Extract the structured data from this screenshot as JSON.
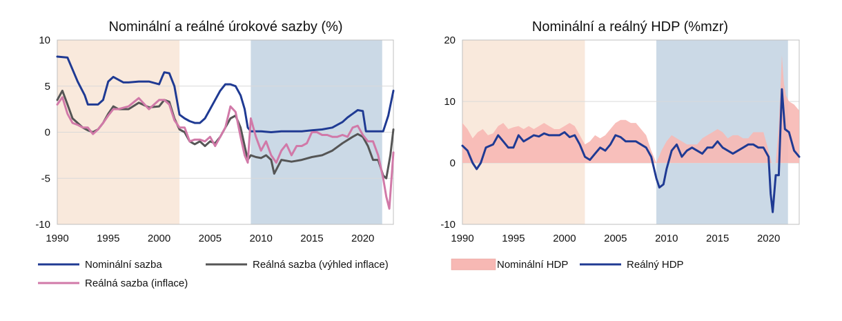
{
  "chart_data": [
    {
      "type": "line",
      "title": "Nominální a reálné úrokové sazby (%)",
      "xlim": [
        1990,
        2023
      ],
      "ylim": [
        -10,
        10
      ],
      "x_ticks": [
        1990,
        1995,
        2000,
        2005,
        2010,
        2015,
        2020
      ],
      "y_ticks": [
        -10,
        -5,
        0,
        5,
        10
      ],
      "grid": true,
      "legend": "bottom",
      "shaded_periods": [
        {
          "from": 1990,
          "to": 2002,
          "color": "#f9e9dc"
        },
        {
          "from": 2009,
          "to": 2021.9,
          "color": "#cbd9e6"
        }
      ],
      "series": [
        {
          "name": "Nominální sazba",
          "color": "#1f3a93",
          "x": [
            1990,
            1991,
            1992,
            1992.7,
            1993,
            1994,
            1994.5,
            1995,
            1995.5,
            1996,
            1996.5,
            1997,
            1998,
            1999,
            2000,
            2000.3,
            2000.5,
            2001,
            2001.5,
            2002,
            2002.5,
            2003,
            2003.5,
            2004,
            2004.5,
            2005,
            2005.5,
            2006,
            2006.5,
            2007,
            2007.5,
            2008,
            2008.4,
            2008.7,
            2009,
            2010,
            2011,
            2012,
            2013,
            2014,
            2015,
            2016,
            2017,
            2017.5,
            2018,
            2018.5,
            2019,
            2019.5,
            2020,
            2020.3,
            2021,
            2021.5,
            2022,
            2022.5,
            2023
          ],
          "y": [
            8.2,
            8.1,
            5.5,
            4.0,
            3.0,
            3.0,
            3.5,
            5.5,
            6.0,
            5.7,
            5.4,
            5.4,
            5.5,
            5.5,
            5.2,
            6.0,
            6.5,
            6.4,
            5.0,
            1.9,
            1.5,
            1.2,
            1.0,
            1.0,
            1.5,
            2.5,
            3.5,
            4.5,
            5.2,
            5.2,
            5.0,
            4.0,
            2.5,
            0.5,
            0.1,
            0.1,
            0.0,
            0.1,
            0.1,
            0.1,
            0.2,
            0.3,
            0.5,
            0.8,
            1.1,
            1.6,
            2.0,
            2.4,
            2.3,
            0.1,
            0.1,
            0.1,
            0.1,
            1.8,
            4.5
          ]
        },
        {
          "name": "Reálná sazba (výhled inflace)",
          "color": "#555555",
          "x": [
            1990,
            1990.5,
            1991,
            1991.5,
            1992,
            1992.5,
            1993,
            1993.5,
            1994,
            1994.5,
            1995,
            1995.5,
            1996,
            1997,
            1998,
            1999,
            2000,
            2000.5,
            2001,
            2001.5,
            2002,
            2002.5,
            2003,
            2003.5,
            2004,
            2004.5,
            2005,
            2005.5,
            2006,
            2006.5,
            2007,
            2007.5,
            2008,
            2008.4,
            2008.7,
            2009,
            2009.5,
            2010,
            2010.5,
            2011,
            2011.3,
            2012,
            2013,
            2014,
            2015,
            2016,
            2017,
            2018,
            2019,
            2019.5,
            2020,
            2020.5,
            2021,
            2021.5,
            2022,
            2022.3,
            2022.7,
            2023
          ],
          "y": [
            3.5,
            4.5,
            3.0,
            1.5,
            1.0,
            0.5,
            0.2,
            0.0,
            0.3,
            1.0,
            2.0,
            2.8,
            2.5,
            2.5,
            3.2,
            2.7,
            2.8,
            3.5,
            3.3,
            1.5,
            0.3,
            0.0,
            -1.0,
            -1.3,
            -1.0,
            -1.5,
            -1.0,
            -1.2,
            -0.5,
            0.5,
            1.5,
            1.8,
            0.5,
            -1.5,
            -3.0,
            -2.5,
            -2.7,
            -2.8,
            -2.5,
            -3.0,
            -4.5,
            -3.0,
            -3.2,
            -3.0,
            -2.7,
            -2.5,
            -2.0,
            -1.2,
            -0.5,
            -0.2,
            -0.5,
            -1.5,
            -3.0,
            -3.0,
            -4.7,
            -5.0,
            -2.5,
            0.3
          ]
        },
        {
          "name": "Reálná sazba (inflace)",
          "color": "#d179a8",
          "x": [
            1990,
            1990.5,
            1991,
            1991.5,
            1992,
            1992.5,
            1993,
            1993.5,
            1994,
            1994.5,
            1995,
            1995.5,
            1996,
            1997,
            1998,
            1999,
            2000,
            2000.5,
            2001,
            2001.5,
            2002,
            2002.5,
            2003,
            2003.5,
            2004,
            2004.5,
            2005,
            2005.5,
            2006,
            2006.5,
            2007,
            2007.5,
            2008,
            2008.4,
            2008.7,
            2009,
            2009.5,
            2010,
            2010.5,
            2011,
            2011.5,
            2012,
            2012.5,
            2013,
            2013.5,
            2014,
            2014.5,
            2015,
            2015.5,
            2016,
            2016.5,
            2017,
            2017.5,
            2018,
            2018.5,
            2019,
            2019.5,
            2020,
            2020.5,
            2021,
            2021.5,
            2022,
            2022.3,
            2022.6,
            2023
          ],
          "y": [
            3.0,
            3.8,
            2.0,
            1.0,
            0.8,
            0.5,
            0.5,
            -0.2,
            0.3,
            1.0,
            1.8,
            2.5,
            2.5,
            2.8,
            3.7,
            2.5,
            3.5,
            3.5,
            3.0,
            1.3,
            0.5,
            0.5,
            -1.0,
            -0.8,
            -0.8,
            -1.0,
            -0.5,
            -1.5,
            -0.5,
            0.5,
            2.8,
            2.2,
            -0.5,
            -2.5,
            -3.3,
            1.5,
            -0.5,
            -2.0,
            -1.0,
            -2.5,
            -3.3,
            -2.0,
            -1.3,
            -2.5,
            -1.5,
            -1.5,
            -1.2,
            0.0,
            0.0,
            -0.3,
            -0.3,
            -0.5,
            -0.5,
            -0.3,
            -0.5,
            0.5,
            0.7,
            -0.3,
            -1.0,
            -1.0,
            -2.5,
            -5.0,
            -7.0,
            -8.3,
            -2.2
          ]
        }
      ]
    },
    {
      "type": "area",
      "title": "Nominální a reálný HDP (%mzr)",
      "xlim": [
        1990,
        2023
      ],
      "ylim": [
        -10,
        20
      ],
      "x_ticks": [
        1990,
        1995,
        2000,
        2005,
        2010,
        2015,
        2020
      ],
      "y_ticks": [
        -10,
        0,
        10,
        20
      ],
      "grid": true,
      "legend": "bottom",
      "shaded_periods": [
        {
          "from": 1990,
          "to": 2002,
          "color": "#f9e9dc"
        },
        {
          "from": 2009,
          "to": 2021.9,
          "color": "#cbd9e6"
        }
      ],
      "series": [
        {
          "name": "Nominální HDP",
          "color": "#f7b8b4",
          "kind": "area",
          "x": [
            1990,
            1990.5,
            1991,
            1991.5,
            1992,
            1992.5,
            1993,
            1993.5,
            1994,
            1994.5,
            1995,
            1995.5,
            1996,
            1996.5,
            1997,
            1997.5,
            1998,
            1998.5,
            1999,
            1999.5,
            2000,
            2000.5,
            2001,
            2001.5,
            2002,
            2002.5,
            2003,
            2003.5,
            2004,
            2004.5,
            2005,
            2005.5,
            2006,
            2006.5,
            2007,
            2007.5,
            2008,
            2008.5,
            2009,
            2009.5,
            2010,
            2010.5,
            2011,
            2011.5,
            2012,
            2012.5,
            2013,
            2013.5,
            2014,
            2014.5,
            2015,
            2015.5,
            2016,
            2016.5,
            2017,
            2017.5,
            2018,
            2018.5,
            2019,
            2019.5,
            2020,
            2020.3,
            2020.7,
            2021,
            2021.3,
            2021.5,
            2021.7,
            2022,
            2022.5,
            2023
          ],
          "y": [
            6.5,
            5.5,
            4.0,
            5.0,
            5.5,
            4.5,
            4.8,
            6.0,
            6.5,
            5.5,
            5.8,
            6.0,
            5.5,
            6.0,
            5.5,
            6.0,
            6.5,
            6.0,
            5.5,
            5.5,
            6.0,
            6.5,
            6.0,
            4.5,
            3.0,
            3.5,
            4.5,
            4.0,
            4.5,
            5.5,
            6.5,
            7.0,
            7.0,
            6.5,
            6.5,
            5.5,
            4.5,
            2.0,
            0.0,
            2.0,
            3.5,
            4.5,
            4.0,
            3.5,
            3.0,
            3.0,
            3.0,
            4.0,
            4.5,
            5.0,
            5.5,
            5.0,
            4.0,
            4.5,
            4.5,
            4.0,
            4.0,
            5.0,
            5.0,
            5.0,
            2.0,
            0.0,
            0.0,
            6.0,
            17.5,
            13.0,
            11.0,
            10.0,
            9.5,
            8.5
          ]
        },
        {
          "name": "Reálný HDP",
          "color": "#1f3a93",
          "kind": "line",
          "x": [
            1990,
            1990.5,
            1991,
            1991.4,
            1991.8,
            1992.3,
            1993,
            1993.5,
            1994,
            1994.5,
            1995,
            1995.5,
            1996,
            1996.5,
            1997,
            1997.5,
            1998,
            1998.5,
            1999,
            1999.5,
            2000,
            2000.5,
            2001,
            2001.5,
            2002,
            2002.5,
            2003,
            2003.5,
            2004,
            2004.5,
            2005,
            2005.5,
            2006,
            2006.5,
            2007,
            2007.5,
            2008,
            2008.5,
            2009,
            2009.3,
            2009.7,
            2010,
            2010.5,
            2011,
            2011.5,
            2012,
            2012.5,
            2013,
            2013.5,
            2014,
            2014.5,
            2015,
            2015.5,
            2016,
            2016.5,
            2017,
            2017.5,
            2018,
            2018.5,
            2019,
            2019.5,
            2020,
            2020.2,
            2020.4,
            2020.7,
            2021,
            2021.3,
            2021.6,
            2022,
            2022.5,
            2023
          ],
          "y": [
            2.8,
            2.0,
            0.0,
            -1.0,
            0.0,
            2.5,
            3.0,
            4.5,
            3.5,
            2.5,
            2.5,
            4.5,
            3.5,
            4.0,
            4.5,
            4.3,
            4.8,
            4.5,
            4.5,
            4.5,
            5.0,
            4.2,
            4.5,
            3.0,
            1.0,
            0.5,
            1.5,
            2.5,
            2.0,
            3.0,
            4.5,
            4.2,
            3.5,
            3.5,
            3.5,
            3.0,
            2.5,
            1.0,
            -2.5,
            -4.0,
            -3.5,
            -1.0,
            2.0,
            3.0,
            1.0,
            2.0,
            2.5,
            2.0,
            1.5,
            2.5,
            2.5,
            3.5,
            2.5,
            2.0,
            1.5,
            2.0,
            2.5,
            3.0,
            3.0,
            2.5,
            2.5,
            1.0,
            -5.0,
            -8.0,
            -2.0,
            -2.0,
            12.0,
            5.5,
            5.0,
            2.0,
            1.0
          ]
        }
      ]
    }
  ]
}
